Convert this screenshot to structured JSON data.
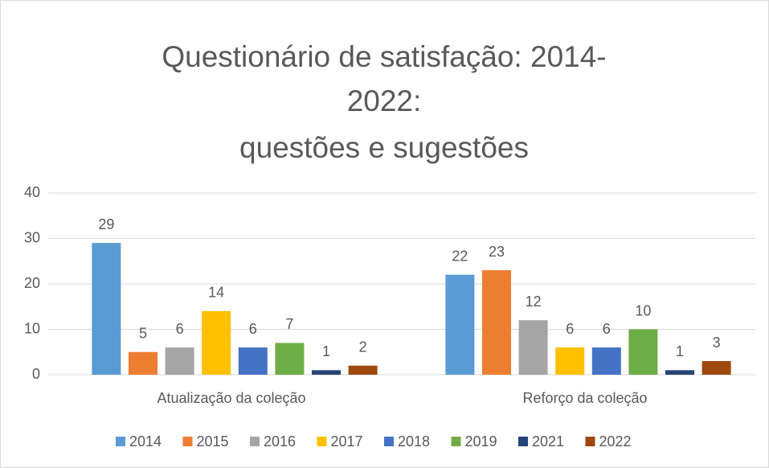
{
  "chart_data": {
    "type": "bar",
    "title": [
      "Questionário de satisfação: 2014-",
      "2022:",
      "questões e sugestões"
    ],
    "categories": [
      "Atualização da coleção",
      "Reforço da coleção"
    ],
    "series": [
      {
        "name": "2014",
        "color": "#5b9bd5",
        "values": [
          29,
          22
        ]
      },
      {
        "name": "2015",
        "color": "#ed7d31",
        "values": [
          5,
          23
        ]
      },
      {
        "name": "2016",
        "color": "#a5a5a5",
        "values": [
          6,
          12
        ]
      },
      {
        "name": "2017",
        "color": "#ffc000",
        "values": [
          14,
          6
        ]
      },
      {
        "name": "2018",
        "color": "#4472c4",
        "values": [
          6,
          6
        ]
      },
      {
        "name": "2019",
        "color": "#70ad47",
        "values": [
          7,
          10
        ]
      },
      {
        "name": "2021",
        "color": "#264478",
        "values": [
          1,
          1
        ]
      },
      {
        "name": "2022",
        "color": "#9e480e",
        "values": [
          2,
          3
        ]
      }
    ],
    "ylim": [
      0,
      40
    ],
    "yticks": [
      0,
      10,
      20,
      30,
      40
    ],
    "grid": true,
    "legend": "bottom"
  }
}
